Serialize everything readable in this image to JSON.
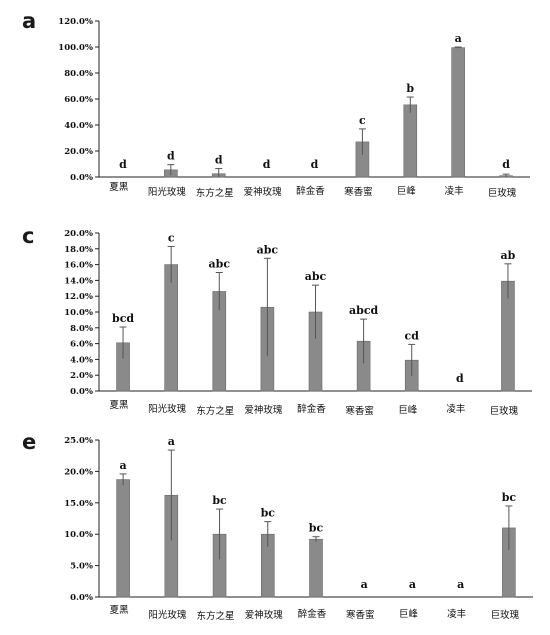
{
  "chart_data": [
    {
      "type": "bar",
      "panel": "a",
      "categories": [
        "夏黑",
        "阳光玫瑰",
        "东方之星",
        "爱神玫瑰",
        "醉金香",
        "寒香蜜",
        "巨峰",
        "凌丰",
        "巨玫瑰"
      ],
      "values": [
        0,
        5.5,
        2.5,
        0,
        0,
        27,
        55.5,
        99.5,
        1
      ],
      "errors": [
        0,
        4,
        4,
        0,
        0,
        10,
        6,
        0.5,
        1.2
      ],
      "significance": [
        "d",
        "d",
        "d",
        "d",
        "d",
        "c",
        "b",
        "a",
        "d"
      ],
      "yticks": [
        "0.0%",
        "20.0%",
        "40.0%",
        "60.0%",
        "80.0%",
        "100.0%",
        "120.0%"
      ],
      "ylim": [
        0,
        120
      ],
      "color": "#8a8a8a"
    },
    {
      "type": "bar",
      "panel": "c",
      "categories": [
        "夏黑",
        "阳光玫瑰",
        "东方之星",
        "爱神玫瑰",
        "醉金香",
        "寒香蜜",
        "巨峰",
        "凌丰",
        "巨玫瑰"
      ],
      "values": [
        6.1,
        16,
        12.6,
        10.6,
        10,
        6.3,
        3.9,
        0,
        13.9
      ],
      "errors": [
        2,
        2.3,
        2.4,
        6.2,
        3.4,
        2.8,
        2,
        0,
        2.2
      ],
      "significance": [
        "bcd",
        "c",
        "abc",
        "abc",
        "abc",
        "abcd",
        "cd",
        "d",
        "ab"
      ],
      "yticks": [
        "0.0%",
        "2.0%",
        "4.0%",
        "6.0%",
        "8.0%",
        "10.0%",
        "12.0%",
        "14.0%",
        "16.0%",
        "18.0%",
        "20.0%"
      ],
      "ylim": [
        0,
        20
      ],
      "color": "#8a8a8a"
    },
    {
      "type": "bar",
      "panel": "e",
      "categories": [
        "夏黑",
        "阳光玫瑰",
        "东方之星",
        "爱神玫瑰",
        "醉金香",
        "寒香蜜",
        "巨峰",
        "凌丰",
        "巨玫瑰"
      ],
      "values": [
        18.7,
        16.2,
        10,
        10,
        9.2,
        0,
        0,
        0,
        11
      ],
      "errors": [
        0.9,
        7.2,
        4,
        2,
        0.4,
        0,
        0,
        0,
        3.5
      ],
      "significance": [
        "a",
        "a",
        "bc",
        "bc",
        "bc",
        "a",
        "a",
        "a",
        "bc"
      ],
      "yticks": [
        "0.0%",
        "5.0%",
        "10.0%",
        "15.0%",
        "20.0%",
        "25.0%"
      ],
      "ylim": [
        0,
        25
      ],
      "color": "#8a8a8a"
    }
  ]
}
